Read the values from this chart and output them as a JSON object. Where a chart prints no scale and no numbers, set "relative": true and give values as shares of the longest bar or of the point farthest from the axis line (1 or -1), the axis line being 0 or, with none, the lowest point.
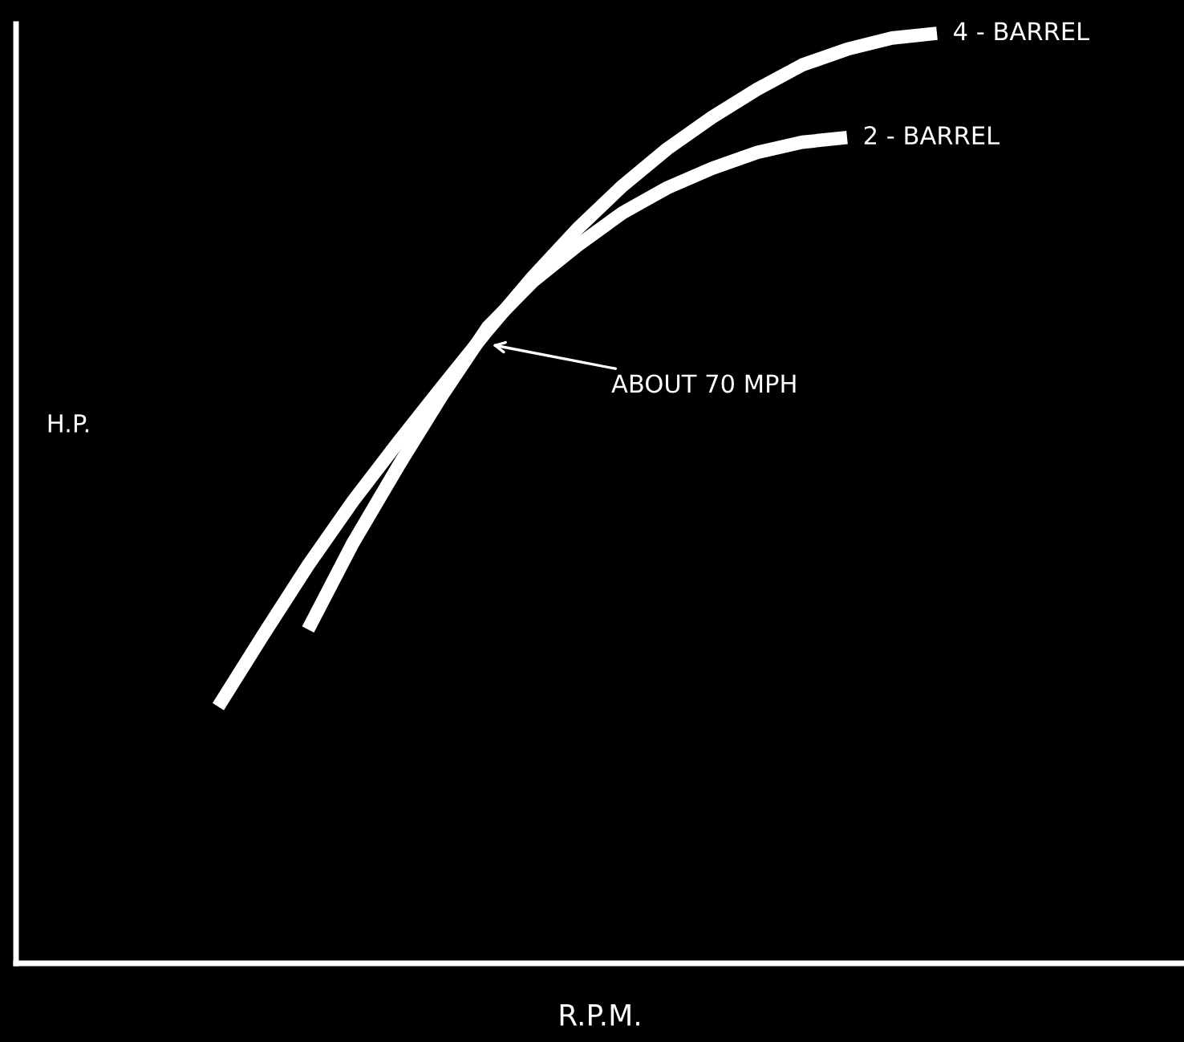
{
  "chart_data": {
    "type": "line",
    "relative": true,
    "xlabel": "R.P.M.",
    "ylabel": "H.P.",
    "categories": [
      null,
      null,
      null,
      null,
      null,
      null,
      null,
      null,
      null,
      null,
      null,
      null,
      null,
      null,
      null,
      null,
      null,
      null,
      null,
      null,
      null,
      null,
      null,
      null,
      null,
      null
    ],
    "series": [
      {
        "name": "4 - BARREL",
        "color": "#ffffff",
        "values": [
          null,
          null,
          null,
          null,
          0.276,
          0.353,
          0.428,
          0.497,
          0.56,
          0.621,
          0.681,
          0.738,
          0.79,
          0.836,
          0.876,
          0.91,
          0.94,
          0.966,
          0.983,
          0.995,
          1.0,
          null,
          null,
          null,
          null,
          null
        ]
      },
      {
        "name": "2 - BARREL",
        "color": "#ffffff",
        "values": [
          null,
          null,
          null,
          null,
          null,
          null,
          0.359,
          0.452,
          0.534,
          0.612,
          0.684,
          0.733,
          0.772,
          0.807,
          0.834,
          0.855,
          0.872,
          0.883,
          0.888,
          null,
          null,
          null,
          null,
          null,
          null,
          null
        ]
      }
    ],
    "annotations": [
      "ABOUT 70 MPH"
    ],
    "marker": "none",
    "line_style": "solid",
    "legend": false
  }
}
